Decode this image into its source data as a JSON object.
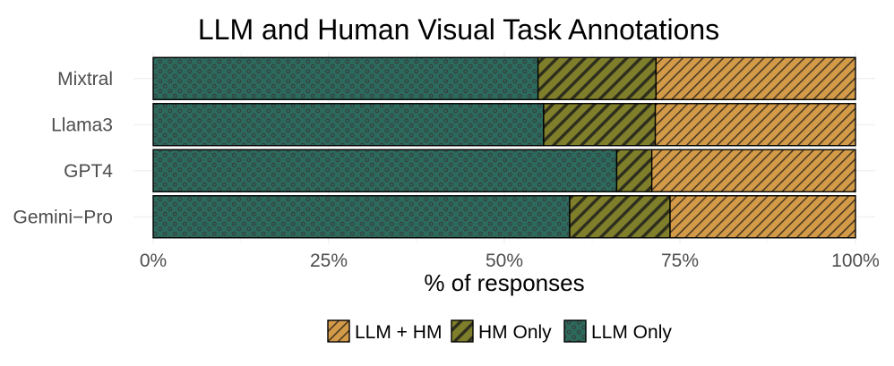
{
  "chart_data": {
    "type": "bar",
    "orientation": "horizontal",
    "stacked": true,
    "normalized": true,
    "title": "LLM and Human Visual Task Annotations",
    "xlabel": "% of responses",
    "ylabel": "",
    "xlim": [
      0,
      1
    ],
    "x_ticks": [
      0,
      0.25,
      0.5,
      0.75,
      1.0
    ],
    "x_tick_labels": [
      "0%",
      "25%",
      "50%",
      "75%",
      "100%"
    ],
    "grid": true,
    "legend_position": "bottom",
    "categories": [
      "Mixtral",
      "Llama3",
      "GPT4",
      "Gemini−Pro"
    ],
    "series": [
      {
        "name": "LLM Only",
        "color": "#2b6a5c",
        "pattern": "dots",
        "values": [
          0.548,
          0.556,
          0.66,
          0.593
        ]
      },
      {
        "name": "HM Only",
        "color": "#7f7e2a",
        "pattern": "stripes",
        "values": [
          0.168,
          0.159,
          0.05,
          0.143
        ]
      },
      {
        "name": "LLM + HM",
        "color": "#d39a48",
        "pattern": "stripes",
        "values": [
          0.284,
          0.285,
          0.29,
          0.264
        ]
      }
    ],
    "legend_order": [
      "LLM + HM",
      "HM Only",
      "LLM Only"
    ]
  }
}
